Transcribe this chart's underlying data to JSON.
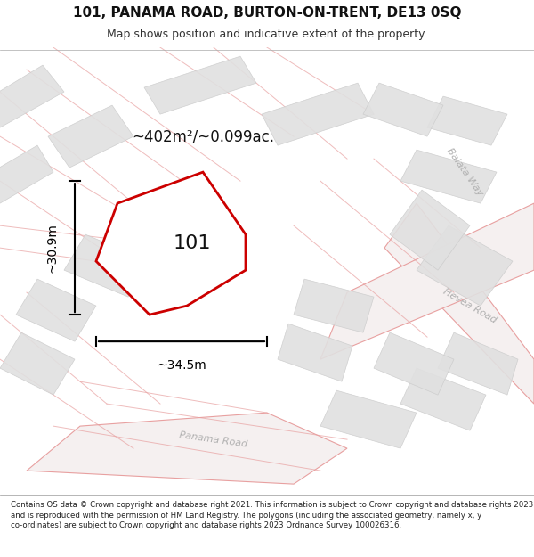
{
  "title": "101, PANAMA ROAD, BURTON-ON-TRENT, DE13 0SQ",
  "subtitle": "Map shows position and indicative extent of the property.",
  "footer": "Contains OS data © Crown copyright and database right 2021. This information is subject to Crown copyright and database rights 2023 and is reproduced with the permission of HM Land Registry. The polygons (including the associated geometry, namely x, y co-ordinates) are subject to Crown copyright and database rights 2023 Ordnance Survey 100026316.",
  "area_text": "~402m²/~0.099ac.",
  "width_text": "~34.5m",
  "height_text": "~30.9m",
  "plot_label": "101",
  "bg_color": "#ffffff",
  "map_bg": "#f8f8f8",
  "road_fill": "#f0f0f0",
  "building_fill": "#e0e0e0",
  "road_outline": "#e8a0a0",
  "property_color": "#cc0000",
  "street_label_color": "#b0b0b0",
  "dim_color": "#000000"
}
